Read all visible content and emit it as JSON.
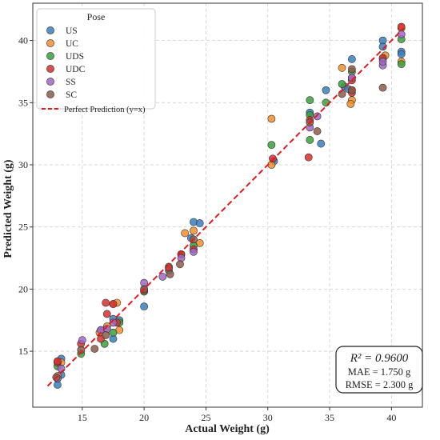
{
  "chart_data": {
    "type": "scatter",
    "title": "",
    "xlabel": "Actual Weight (g)",
    "ylabel": "Predicted Weight (g)",
    "xlim": [
      11,
      42.5
    ],
    "ylim": [
      10.5,
      43
    ],
    "xticks": [
      15,
      20,
      25,
      30,
      35,
      40
    ],
    "yticks": [
      15,
      20,
      25,
      30,
      35,
      40
    ],
    "grid": true,
    "legend": {
      "title": "Pose",
      "position": "top-left"
    },
    "reference_line": {
      "label": "Perfect Prediction (y=x)",
      "color": "#e41a1c",
      "x": [
        12.2,
        41.0
      ],
      "y": [
        12.2,
        41.0
      ]
    },
    "metrics": {
      "r2": "R² = 0.9600",
      "mae": "MAE = 1.750 g",
      "rmse": "RMSE = 2.300 g"
    },
    "series": [
      {
        "name": "US",
        "color": "#3a7fbd",
        "points": [
          [
            13.0,
            12.3
          ],
          [
            13.0,
            12.8
          ],
          [
            13.3,
            13.1
          ],
          [
            13.3,
            14.4
          ],
          [
            16.5,
            16.7
          ],
          [
            17.5,
            17.6
          ],
          [
            17.5,
            16.0
          ],
          [
            18.0,
            17.5
          ],
          [
            20.0,
            18.6
          ],
          [
            22.0,
            21.5
          ],
          [
            24.0,
            25.4
          ],
          [
            24.5,
            25.3
          ],
          [
            23.8,
            24.1
          ],
          [
            30.5,
            30.3
          ],
          [
            33.4,
            34.2
          ],
          [
            34.3,
            31.7
          ],
          [
            34.7,
            36.0
          ],
          [
            36.2,
            36.3
          ],
          [
            36.5,
            36.1
          ],
          [
            36.8,
            38.5
          ],
          [
            39.3,
            40.0
          ],
          [
            39.3,
            39.5
          ],
          [
            40.8,
            39.1
          ],
          [
            40.8,
            38.9
          ]
        ]
      },
      {
        "name": "UC",
        "color": "#f28e2b",
        "points": [
          [
            13.0,
            13.0
          ],
          [
            13.3,
            14.1
          ],
          [
            16.4,
            16.5
          ],
          [
            17.0,
            17.0
          ],
          [
            17.5,
            18.8
          ],
          [
            17.8,
            18.9
          ],
          [
            18.0,
            16.7
          ],
          [
            23.3,
            24.5
          ],
          [
            24.0,
            24.7
          ],
          [
            24.5,
            23.7
          ],
          [
            30.3,
            33.7
          ],
          [
            30.3,
            30.0
          ],
          [
            36.0,
            37.8
          ],
          [
            36.8,
            37.0
          ],
          [
            36.8,
            35.2
          ],
          [
            36.7,
            34.9
          ],
          [
            39.5,
            38.8
          ],
          [
            40.8,
            38.3
          ],
          [
            40.8,
            41.0
          ]
        ]
      },
      {
        "name": "UDS",
        "color": "#3aa03a",
        "points": [
          [
            13.0,
            13.8
          ],
          [
            14.9,
            14.8
          ],
          [
            16.8,
            15.6
          ],
          [
            17.5,
            16.5
          ],
          [
            18.0,
            17.3
          ],
          [
            20.0,
            19.8
          ],
          [
            22.0,
            21.8
          ],
          [
            23.0,
            22.8
          ],
          [
            24.0,
            23.5
          ],
          [
            30.3,
            31.6
          ],
          [
            33.4,
            35.2
          ],
          [
            33.4,
            34.0
          ],
          [
            33.4,
            32.0
          ],
          [
            34.7,
            35.0
          ],
          [
            36.0,
            36.5
          ],
          [
            36.8,
            37.5
          ],
          [
            39.3,
            38.5
          ],
          [
            40.8,
            40.1
          ],
          [
            40.8,
            38.1
          ]
        ]
      },
      {
        "name": "UDC",
        "color": "#d62f2f",
        "points": [
          [
            13.0,
            14.1
          ],
          [
            13.0,
            14.2
          ],
          [
            14.9,
            15.6
          ],
          [
            16.5,
            16.0
          ],
          [
            16.9,
            18.9
          ],
          [
            17.0,
            18.0
          ],
          [
            17.5,
            18.8
          ],
          [
            17.8,
            17.3
          ],
          [
            20.0,
            19.9
          ],
          [
            22.0,
            21.7
          ],
          [
            23.0,
            22.8
          ],
          [
            24.0,
            23.2
          ],
          [
            30.4,
            30.5
          ],
          [
            33.3,
            30.6
          ],
          [
            33.4,
            33.6
          ],
          [
            36.8,
            36.0
          ],
          [
            36.8,
            36.8
          ],
          [
            36.8,
            35.8
          ],
          [
            39.3,
            38.6
          ],
          [
            40.8,
            41.1
          ]
        ]
      },
      {
        "name": "SS",
        "color": "#a066c8",
        "points": [
          [
            13.0,
            12.8
          ],
          [
            13.3,
            13.6
          ],
          [
            15.0,
            15.9
          ],
          [
            16.5,
            16.7
          ],
          [
            17.0,
            16.8
          ],
          [
            17.5,
            17.3
          ],
          [
            20.0,
            20.5
          ],
          [
            21.5,
            21.0
          ],
          [
            23.0,
            22.5
          ],
          [
            24.0,
            23.0
          ],
          [
            33.4,
            33.0
          ],
          [
            34.0,
            33.9
          ],
          [
            36.8,
            37.0
          ],
          [
            39.3,
            38.0
          ],
          [
            39.3,
            38.3
          ],
          [
            40.8,
            40.5
          ]
        ]
      },
      {
        "name": "SC",
        "color": "#8c5a48",
        "points": [
          [
            12.9,
            12.9
          ],
          [
            14.9,
            15.1
          ],
          [
            16.0,
            15.2
          ],
          [
            16.9,
            16.3
          ],
          [
            20.0,
            20.0
          ],
          [
            22.1,
            21.2
          ],
          [
            22.9,
            22.0
          ],
          [
            24.0,
            24.0
          ],
          [
            33.4,
            33.4
          ],
          [
            34.0,
            32.7
          ],
          [
            36.0,
            35.7
          ],
          [
            36.8,
            36.0
          ],
          [
            36.8,
            37.7
          ],
          [
            39.3,
            36.2
          ]
        ]
      }
    ]
  }
}
